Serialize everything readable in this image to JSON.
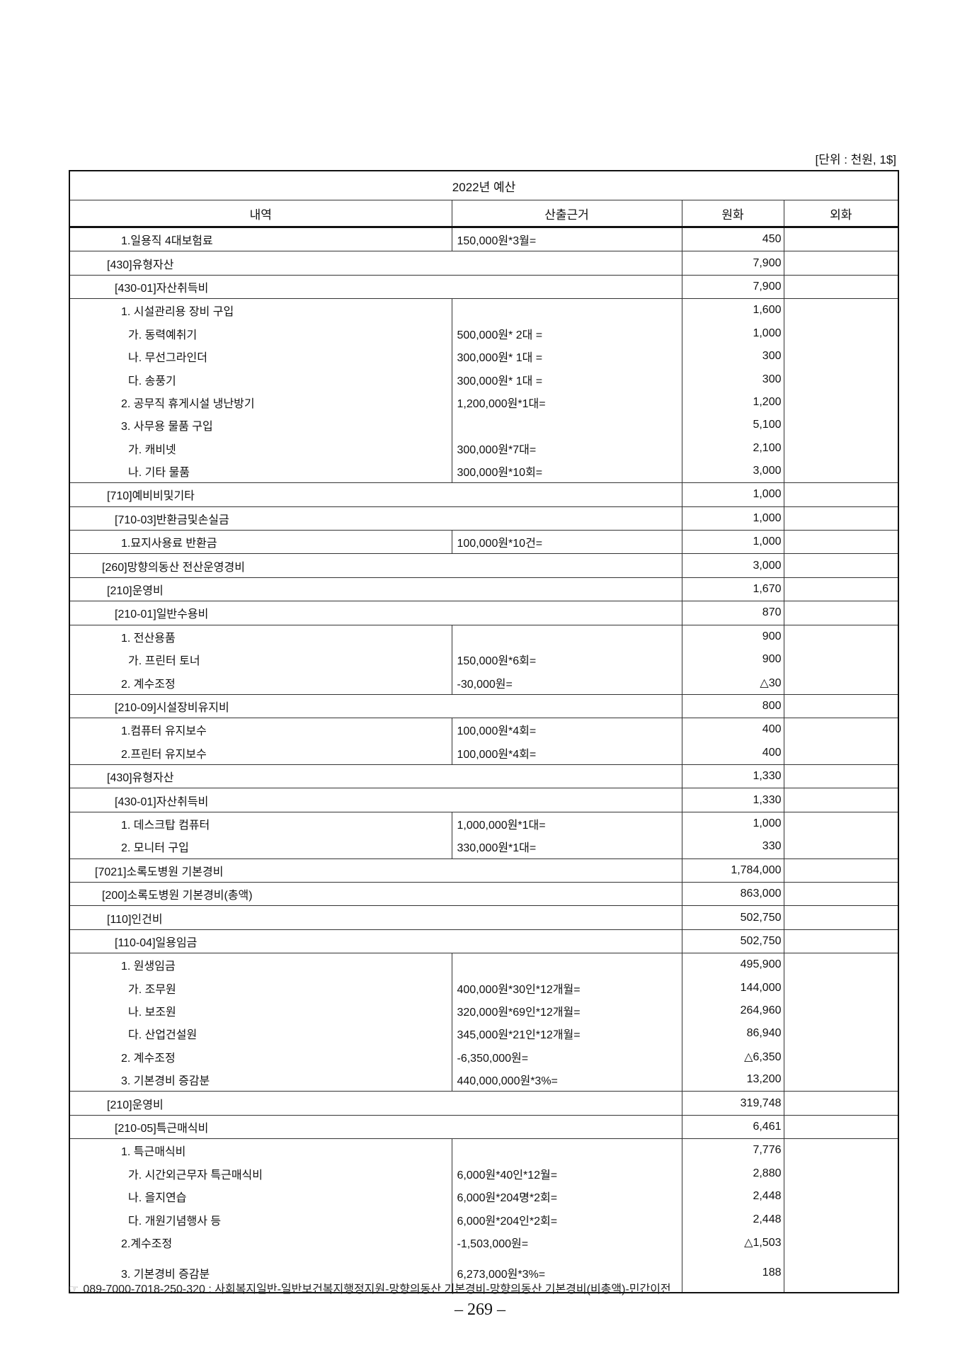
{
  "unit_note": "[단위 : 천원, 1$]",
  "table": {
    "title": "2022년 예산",
    "columns": [
      "내역",
      "산출근거",
      "원화",
      "외화"
    ],
    "groups": [
      {
        "type": "detail",
        "rows": [
          {
            "level": 4,
            "label": "1.일용직 4대보험료",
            "basis": "150,000원*3월=",
            "krw": "450"
          }
        ]
      },
      {
        "type": "header",
        "rows": [
          {
            "level": 2,
            "label": "[430]유형자산",
            "krw": "7,900"
          }
        ]
      },
      {
        "type": "header",
        "rows": [
          {
            "level": 3,
            "label": "[430-01]자산취득비",
            "krw": "7,900"
          }
        ]
      },
      {
        "type": "detail",
        "rows": [
          {
            "level": 4,
            "label": "1. 시설관리용 장비 구입",
            "basis": "",
            "krw": "1,600"
          },
          {
            "level": 5,
            "label": "가. 동력예취기",
            "basis": "500,000원* 2대 =",
            "krw": "1,000"
          },
          {
            "level": 5,
            "label": "나. 무선그라인더",
            "basis": "300,000원* 1대 =",
            "krw": "300"
          },
          {
            "level": 5,
            "label": "다. 송풍기",
            "basis": "300,000원* 1대 =",
            "krw": "300"
          },
          {
            "level": 4,
            "label": "2. 공무직 휴게시설 냉난방기",
            "basis": "1,200,000원*1대=",
            "krw": "1,200"
          },
          {
            "level": 4,
            "label": "3. 사무용 물품 구입",
            "basis": "",
            "krw": "5,100"
          },
          {
            "level": 5,
            "label": "가. 캐비넷",
            "basis": "300,000원*7대=",
            "krw": "2,100"
          },
          {
            "level": 5,
            "label": "나. 기타 물품",
            "basis": "300,000원*10회=",
            "krw": "3,000"
          }
        ]
      },
      {
        "type": "header",
        "rows": [
          {
            "level": 2,
            "label": "[710]예비비및기타",
            "krw": "1,000"
          }
        ]
      },
      {
        "type": "header",
        "rows": [
          {
            "level": 3,
            "label": "[710-03]반환금및손실금",
            "krw": "1,000"
          }
        ]
      },
      {
        "type": "detail",
        "rows": [
          {
            "level": 4,
            "label": "1.묘지사용료 반환금",
            "basis": "100,000원*10건=",
            "krw": "1,000"
          }
        ]
      },
      {
        "type": "header",
        "rows": [
          {
            "level": 1,
            "label": "[260]망향의동산 전산운영경비",
            "krw": "3,000"
          }
        ]
      },
      {
        "type": "header",
        "rows": [
          {
            "level": 2,
            "label": "[210]운영비",
            "krw": "1,670"
          }
        ]
      },
      {
        "type": "header",
        "rows": [
          {
            "level": 3,
            "label": "[210-01]일반수용비",
            "krw": "870"
          }
        ]
      },
      {
        "type": "detail",
        "rows": [
          {
            "level": 4,
            "label": "1. 전산용품",
            "basis": "",
            "krw": "900"
          },
          {
            "level": 5,
            "label": "가. 프린터 토너",
            "basis": "150,000원*6회=",
            "krw": "900"
          },
          {
            "level": 4,
            "label": "2. 계수조정",
            "basis": "-30,000원=",
            "krw": "△30"
          }
        ]
      },
      {
        "type": "header",
        "rows": [
          {
            "level": 3,
            "label": "[210-09]시설장비유지비",
            "krw": "800"
          }
        ]
      },
      {
        "type": "detail",
        "rows": [
          {
            "level": 4,
            "label": "1.컴퓨터 유지보수",
            "basis": "100,000원*4회=",
            "krw": "400"
          },
          {
            "level": 4,
            "label": "2.프린터 유지보수",
            "basis": "100,000원*4회=",
            "krw": "400"
          }
        ]
      },
      {
        "type": "header",
        "rows": [
          {
            "level": 2,
            "label": "[430]유형자산",
            "krw": "1,330"
          }
        ]
      },
      {
        "type": "header",
        "rows": [
          {
            "level": 3,
            "label": "[430-01]자산취득비",
            "krw": "1,330"
          }
        ]
      },
      {
        "type": "detail",
        "rows": [
          {
            "level": 4,
            "label": "1. 데스크탑 컴퓨터",
            "basis": "1,000,000원*1대=",
            "krw": "1,000"
          },
          {
            "level": 4,
            "label": "2. 모니터 구입",
            "basis": "330,000원*1대=",
            "krw": "330"
          }
        ]
      },
      {
        "type": "header",
        "rows": [
          {
            "level": 0,
            "label": "[7021]소록도병원 기본경비",
            "krw": "1,784,000"
          }
        ]
      },
      {
        "type": "header",
        "rows": [
          {
            "level": 1,
            "label": "[200]소록도병원 기본경비(총액)",
            "krw": "863,000"
          }
        ]
      },
      {
        "type": "header",
        "rows": [
          {
            "level": 2,
            "label": "[110]인건비",
            "krw": "502,750"
          }
        ]
      },
      {
        "type": "header",
        "rows": [
          {
            "level": 3,
            "label": "[110-04]일용임금",
            "krw": "502,750"
          }
        ]
      },
      {
        "type": "detail",
        "rows": [
          {
            "level": 4,
            "label": "1. 원생임금",
            "basis": "",
            "krw": "495,900"
          },
          {
            "level": 5,
            "label": "가. 조무원",
            "basis": "400,000원*30인*12개월=",
            "krw": "144,000"
          },
          {
            "level": 5,
            "label": "나. 보조원",
            "basis": "320,000원*69인*12개월=",
            "krw": "264,960"
          },
          {
            "level": 5,
            "label": "다. 산업건설원",
            "basis": "345,000원*21인*12개월=",
            "krw": "86,940"
          },
          {
            "level": 4,
            "label": "2. 계수조정",
            "basis": "-6,350,000원=",
            "krw": "△6,350"
          },
          {
            "level": 4,
            "label": "3. 기본경비 증감분",
            "basis": "440,000,000원*3%=",
            "krw": "13,200"
          }
        ]
      },
      {
        "type": "header",
        "rows": [
          {
            "level": 2,
            "label": "[210]운영비",
            "krw": "319,748"
          }
        ]
      },
      {
        "type": "header",
        "rows": [
          {
            "level": 3,
            "label": "[210-05]특근매식비",
            "krw": "6,461"
          }
        ]
      },
      {
        "type": "detail",
        "rows": [
          {
            "level": 4,
            "label": "1. 특근매식비",
            "basis": "",
            "krw": "7,776"
          },
          {
            "level": 5,
            "label": "가. 시간외근무자 특근매식비",
            "basis": "6,000원*40인*12월=",
            "krw": "2,880"
          },
          {
            "level": 5,
            "label": "나. 을지연습",
            "basis": "6,000원*204명*2회=",
            "krw": "2,448"
          },
          {
            "level": 5,
            "label": "다. 개원기념행사 등",
            "basis": "6,000원*204인*2회=",
            "krw": "2,448"
          },
          {
            "level": 4,
            "label": "2.계수조정",
            "basis": "-1,503,000원=",
            "krw": "△1,503"
          },
          {
            "level": 4,
            "label": "3. 기본경비 증감분",
            "basis": "6,273,000원*3%=",
            "krw": "188"
          }
        ]
      }
    ]
  },
  "footer": {
    "icon": "pointing-hand-icon",
    "text": "089-7000-7018-250-320 : 사회복지일반-일반보건복지행정지원-망향의동산 기본경비-망향의동산 기본경비(비총액)-민간이전"
  },
  "page_number": "– 269 –"
}
